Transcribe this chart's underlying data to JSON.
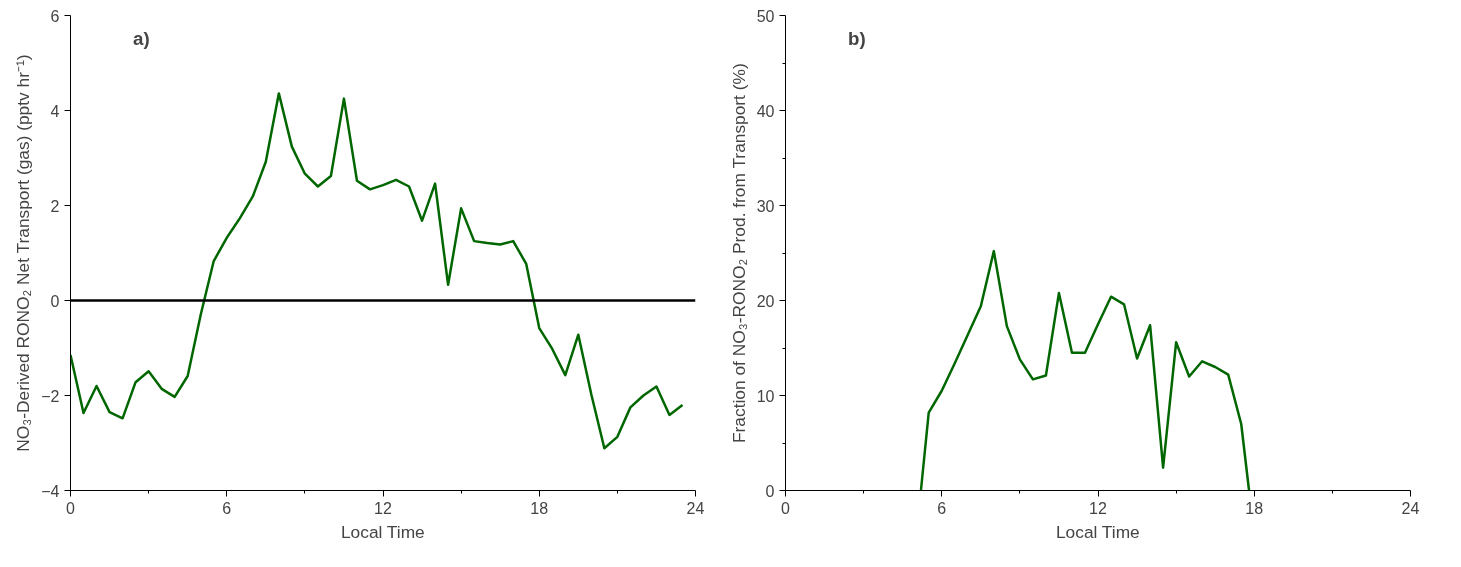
{
  "chart_data": [
    {
      "type": "line",
      "annotations": [
        "a)"
      ],
      "xlabel": "Local Time",
      "ylabel": "NO₃-Derived RONO₂ Net Transport (gas) (pptv hr⁻¹)",
      "x": [
        0,
        0.5,
        1,
        1.5,
        2,
        2.5,
        3,
        3.5,
        4,
        4.5,
        5,
        5.5,
        6,
        6.5,
        7,
        7.5,
        8,
        8.5,
        9,
        9.5,
        10,
        10.5,
        11,
        11.5,
        12,
        12.5,
        13,
        13.5,
        14,
        14.5,
        15,
        15.5,
        16,
        16.5,
        17,
        17.5,
        18,
        18.5,
        19,
        19.5,
        20,
        20.5,
        21,
        21.5,
        22,
        22.5,
        23,
        23.5
      ],
      "series": [
        {
          "color": "#006600",
          "values": [
            -1.15,
            -2.37,
            -1.8,
            -2.35,
            -2.48,
            -1.72,
            -1.49,
            -1.86,
            -2.03,
            -1.59,
            -0.3,
            0.83,
            1.32,
            1.73,
            2.19,
            2.92,
            4.36,
            3.24,
            2.67,
            2.4,
            2.62,
            4.25,
            2.52,
            2.34,
            2.43,
            2.54,
            2.4,
            1.68,
            2.46,
            0.33,
            1.94,
            1.25,
            1.21,
            1.18,
            1.25,
            0.77,
            -0.58,
            -1.02,
            -1.57,
            -0.72,
            -1.98,
            -3.11,
            -2.87,
            -2.25,
            -2.0,
            -1.81,
            -2.41,
            -2.2
          ]
        }
      ],
      "ref_lines": [
        {
          "axis": "y",
          "value": 0,
          "color": "#000000"
        }
      ],
      "xlim": [
        0,
        24
      ],
      "ylim": [
        -4,
        6
      ],
      "xticks": [
        0,
        6,
        12,
        18,
        24
      ],
      "yticks": [
        -4,
        -2,
        0,
        2,
        4,
        6
      ],
      "grid": false
    },
    {
      "type": "line",
      "annotations": [
        "b)"
      ],
      "xlabel": "Local Time",
      "ylabel": "Fraction of NO₃-RONO₂ Prod. from Transport (%)",
      "x": [
        5.2,
        5.5,
        6,
        6.5,
        7,
        7.5,
        8,
        8.5,
        9,
        9.5,
        10,
        10.5,
        11,
        11.5,
        12,
        12.5,
        13,
        13.5,
        14,
        14.5,
        15,
        15.5,
        16,
        16.5,
        17,
        17.5,
        17.8
      ],
      "series": [
        {
          "color": "#006600",
          "values": [
            0,
            8.2,
            10.5,
            13.4,
            16.4,
            19.4,
            25.2,
            17.3,
            13.8,
            11.7,
            12.1,
            20.8,
            14.5,
            14.5,
            17.5,
            20.4,
            19.6,
            13.9,
            17.4,
            2.4,
            15.6,
            12.0,
            13.6,
            13.0,
            12.2,
            7.0,
            0
          ]
        }
      ],
      "xlim": [
        0,
        24
      ],
      "ylim": [
        0,
        50
      ],
      "xticks": [
        0,
        6,
        12,
        18,
        24
      ],
      "yticks": [
        0,
        10,
        20,
        30,
        40,
        50
      ],
      "grid": false
    }
  ]
}
